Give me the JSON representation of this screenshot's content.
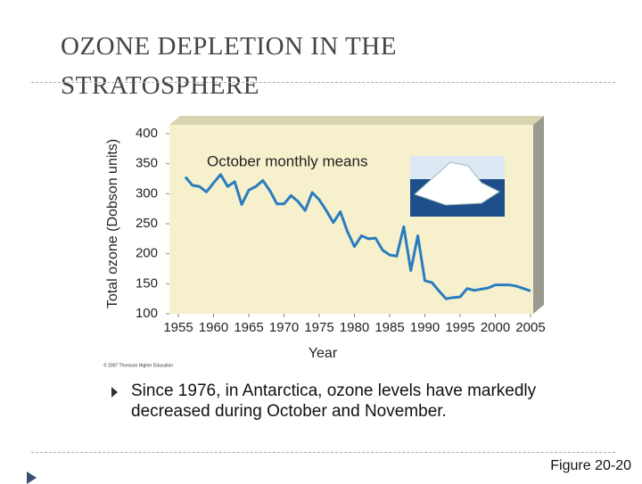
{
  "slide": {
    "title_lines": [
      "OZONE DEPLETION IN THE",
      "STRATOSPHERE"
    ],
    "bullet": "Since 1976, in Antarctica, ozone levels have markedly decreased during October and November.",
    "figure_label": "Figure 20-20"
  },
  "chart_data": {
    "type": "line",
    "title": "October monthly means",
    "x_label": "Year",
    "y_label": "Total ozone (Dobson units)",
    "copyright": "© 2007 Thomson Higher Education",
    "x": [
      1956,
      1957,
      1958,
      1959,
      1960,
      1961,
      1962,
      1963,
      1964,
      1965,
      1966,
      1967,
      1968,
      1969,
      1970,
      1971,
      1972,
      1973,
      1974,
      1975,
      1976,
      1977,
      1978,
      1979,
      1980,
      1981,
      1982,
      1983,
      1984,
      1985,
      1986,
      1987,
      1988,
      1989,
      1990,
      1991,
      1992,
      1993,
      1994,
      1995,
      1996,
      1997,
      1998,
      1999,
      2000,
      2001,
      2002,
      2003,
      2004,
      2005
    ],
    "values": [
      328,
      314,
      312,
      303,
      318,
      332,
      312,
      320,
      282,
      306,
      312,
      322,
      305,
      283,
      283,
      297,
      287,
      272,
      302,
      290,
      272,
      252,
      270,
      237,
      212,
      230,
      225,
      226,
      206,
      198,
      196,
      245,
      172,
      230,
      155,
      152,
      138,
      125,
      127,
      128,
      142,
      139,
      141,
      143,
      148,
      148,
      148,
      146,
      142,
      138
    ],
    "color": "#2a7cc0",
    "xlim": [
      1955,
      2005
    ],
    "xticks": [
      1955,
      1960,
      1965,
      1970,
      1975,
      1980,
      1985,
      1990,
      1995,
      2000,
      2005
    ],
    "ylim": [
      100,
      400
    ],
    "yticks": [
      100,
      150,
      200,
      250,
      300,
      350,
      400
    ],
    "grid": false
  }
}
